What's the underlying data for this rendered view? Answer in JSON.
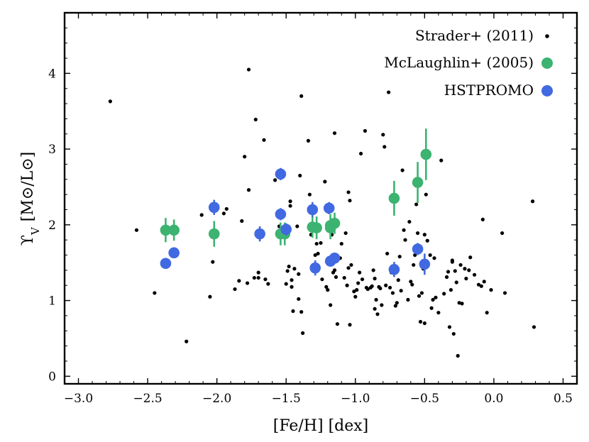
{
  "chart_data": {
    "type": "scatter",
    "title": "",
    "xlabel": "[Fe/H] [dex]",
    "ylabel": "ϒ",
    "ylabel_sub": "V",
    "ylabel_units": "[M⊙/L⊙]",
    "xlim": [
      -3.1,
      0.6
    ],
    "ylim": [
      -0.1,
      4.8
    ],
    "x_ticks": [
      -3.0,
      -2.5,
      -2.0,
      -1.5,
      -1.0,
      -0.5,
      0.0,
      0.5
    ],
    "x_tick_labels": [
      "−3.0",
      "−2.5",
      "−2.0",
      "−1.5",
      "−1.0",
      "−0.5",
      "0.0",
      "0.5"
    ],
    "y_ticks": [
      0,
      1,
      2,
      3,
      4
    ],
    "y_tick_labels": [
      "0",
      "1",
      "2",
      "3",
      "4"
    ],
    "legend_position": "top-right",
    "series": [
      {
        "name": "Strader+ (2011)",
        "color": "#000000",
        "marker": "small-dot",
        "points": [
          [
            -2.77,
            3.63
          ],
          [
            -2.58,
            1.93
          ],
          [
            -2.45,
            1.1
          ],
          [
            -2.22,
            0.46
          ],
          [
            -2.11,
            2.13
          ],
          [
            -2.05,
            1.05
          ],
          [
            -2.03,
            1.51
          ],
          [
            -1.95,
            2.15
          ],
          [
            -1.93,
            2.21
          ],
          [
            -1.87,
            1.15
          ],
          [
            -1.84,
            1.26
          ],
          [
            -1.82,
            2.05
          ],
          [
            -1.8,
            2.9
          ],
          [
            -1.78,
            1.23
          ],
          [
            -1.77,
            4.05
          ],
          [
            -1.77,
            2.46
          ],
          [
            -1.73,
            1.3
          ],
          [
            -1.72,
            3.39
          ],
          [
            -1.7,
            1.3
          ],
          [
            -1.7,
            1.37
          ],
          [
            -1.66,
            3.12
          ],
          [
            -1.65,
            1.28
          ],
          [
            -1.63,
            1.22
          ],
          [
            -1.58,
            2.59
          ],
          [
            -1.55,
            1.98
          ],
          [
            -1.53,
            1.95
          ],
          [
            -1.5,
            1.22
          ],
          [
            -1.49,
            1.39
          ],
          [
            -1.48,
            1.45
          ],
          [
            -1.47,
            2.25
          ],
          [
            -1.47,
            2.31
          ],
          [
            -1.46,
            1.27
          ],
          [
            -1.46,
            1.18
          ],
          [
            -1.45,
            0.86
          ],
          [
            -1.44,
            1.42
          ],
          [
            -1.42,
            1.98
          ],
          [
            -1.41,
            1.35
          ],
          [
            -1.41,
            1.02
          ],
          [
            -1.4,
            2.65
          ],
          [
            -1.39,
            0.85
          ],
          [
            -1.39,
            3.7
          ],
          [
            -1.38,
            0.57
          ],
          [
            -1.34,
            3.11
          ],
          [
            -1.33,
            2.4
          ],
          [
            -1.32,
            1.87
          ],
          [
            -1.3,
            1.45
          ],
          [
            -1.29,
            1.6
          ],
          [
            -1.28,
            1.75
          ],
          [
            -1.27,
            1.62
          ],
          [
            -1.25,
            1.76
          ],
          [
            -1.24,
            1.28
          ],
          [
            -1.22,
            2.57
          ],
          [
            -1.21,
            1.18
          ],
          [
            -1.2,
            1.14
          ],
          [
            -1.19,
            1.51
          ],
          [
            -1.18,
            0.94
          ],
          [
            -1.17,
            1.87
          ],
          [
            -1.16,
            1.53
          ],
          [
            -1.16,
            1.37
          ],
          [
            -1.15,
            1.4
          ],
          [
            -1.15,
            3.21
          ],
          [
            -1.14,
            1.31
          ],
          [
            -1.13,
            0.69
          ],
          [
            -1.11,
            1.56
          ],
          [
            -1.1,
            1.75
          ],
          [
            -1.08,
            1.3
          ],
          [
            -1.07,
            1.89
          ],
          [
            -1.06,
            1.2
          ],
          [
            -1.05,
            1.43
          ],
          [
            -1.05,
            2.43
          ],
          [
            -1.04,
            2.32
          ],
          [
            -1.04,
            0.68
          ],
          [
            -1.03,
            1.47
          ],
          [
            -1.01,
            1.12
          ],
          [
            -1.0,
            1.05
          ],
          [
            -0.99,
            1.14
          ],
          [
            -0.98,
            1.23
          ],
          [
            -0.97,
            1.37
          ],
          [
            -0.96,
            2.94
          ],
          [
            -0.95,
            1.28
          ],
          [
            -0.93,
            3.24
          ],
          [
            -0.92,
            1.17
          ],
          [
            -0.91,
            1.15
          ],
          [
            -0.89,
            1.17
          ],
          [
            -0.88,
            1.19
          ],
          [
            -0.87,
            1.4
          ],
          [
            -0.86,
            1.29
          ],
          [
            -0.86,
            0.89
          ],
          [
            -0.85,
            1.01
          ],
          [
            -0.84,
            0.82
          ],
          [
            -0.83,
            1.18
          ],
          [
            -0.82,
            1.16
          ],
          [
            -0.81,
            0.94
          ],
          [
            -0.8,
            3.19
          ],
          [
            -0.79,
            3.03
          ],
          [
            -0.78,
            1.2
          ],
          [
            -0.77,
            1.62
          ],
          [
            -0.76,
            3.75
          ],
          [
            -0.75,
            1.17
          ],
          [
            -0.74,
            1.37
          ],
          [
            -0.73,
            1.1
          ],
          [
            -0.72,
            1.4
          ],
          [
            -0.71,
            0.93
          ],
          [
            -0.7,
            0.97
          ],
          [
            -0.69,
            1.27
          ],
          [
            -0.68,
            1.58
          ],
          [
            -0.67,
            1.13
          ],
          [
            -0.66,
            2.72
          ],
          [
            -0.65,
            1.93
          ],
          [
            -0.64,
            1.8
          ],
          [
            -0.62,
            1.01
          ],
          [
            -0.61,
            2.04
          ],
          [
            -0.6,
            1.25
          ],
          [
            -0.59,
            1.21
          ],
          [
            -0.58,
            1.47
          ],
          [
            -0.57,
            1.6
          ],
          [
            -0.56,
            2.27
          ],
          [
            -0.55,
            1.89
          ],
          [
            -0.54,
            1.06
          ],
          [
            -0.53,
            0.72
          ],
          [
            -0.52,
            1.1
          ],
          [
            -0.51,
            1.42
          ],
          [
            -0.5,
            1.87
          ],
          [
            -0.5,
            0.7
          ],
          [
            -0.49,
            2.4
          ],
          [
            -0.48,
            1.79
          ],
          [
            -0.46,
            1.6
          ],
          [
            -0.45,
            0.9
          ],
          [
            -0.44,
            1.01
          ],
          [
            -0.43,
            1.56
          ],
          [
            -0.42,
            1.04
          ],
          [
            -0.4,
            0.84
          ],
          [
            -0.38,
            2.85
          ],
          [
            -0.36,
            1.09
          ],
          [
            -0.34,
            1.31
          ],
          [
            -0.33,
            1.38
          ],
          [
            -0.32,
            0.65
          ],
          [
            -0.31,
            1.14
          ],
          [
            -0.3,
            1.51
          ],
          [
            -0.3,
            1.53
          ],
          [
            -0.29,
            0.56
          ],
          [
            -0.28,
            1.39
          ],
          [
            -0.27,
            1.24
          ],
          [
            -0.26,
            0.27
          ],
          [
            -0.25,
            0.97
          ],
          [
            -0.24,
            1.47
          ],
          [
            -0.23,
            0.96
          ],
          [
            -0.21,
            1.42
          ],
          [
            -0.2,
            1.29
          ],
          [
            -0.18,
            1.4
          ],
          [
            -0.17,
            1.57
          ],
          [
            -0.14,
            1.34
          ],
          [
            -0.11,
            1.21
          ],
          [
            -0.09,
            1.19
          ],
          [
            -0.08,
            2.07
          ],
          [
            -0.07,
            1.25
          ],
          [
            -0.05,
            0.84
          ],
          [
            -0.02,
            1.14
          ],
          [
            0.06,
            1.89
          ],
          [
            0.08,
            1.1
          ],
          [
            0.28,
            2.31
          ],
          [
            0.29,
            0.65
          ]
        ]
      },
      {
        "name": "McLaughlin+ (2005)",
        "color": "#3cb371",
        "marker": "circle",
        "points": [
          [
            -2.37,
            1.93,
            0.16
          ],
          [
            -2.31,
            1.93,
            0.14
          ],
          [
            -2.02,
            1.88,
            0.17
          ],
          [
            -1.54,
            1.88,
            0.15
          ],
          [
            -1.51,
            1.88,
            0.15
          ],
          [
            -1.31,
            1.97,
            0.14
          ],
          [
            -1.28,
            1.96,
            0.15
          ],
          [
            -1.18,
            1.96,
            0.15
          ],
          [
            -1.18,
            1.99,
            0.15
          ],
          [
            -1.15,
            2.02,
            0.14
          ],
          [
            -0.72,
            2.35,
            0.23
          ],
          [
            -0.55,
            2.56,
            0.27
          ],
          [
            -0.49,
            2.93,
            0.34
          ]
        ]
      },
      {
        "name": "HSTPROMO",
        "color": "#4169e1",
        "marker": "circle",
        "points": [
          [
            -2.37,
            1.49,
            0.05
          ],
          [
            -2.31,
            1.63,
            0.05
          ],
          [
            -2.02,
            2.23,
            0.1
          ],
          [
            -1.69,
            1.88,
            0.1
          ],
          [
            -1.54,
            2.67,
            0.08
          ],
          [
            -1.54,
            2.14,
            0.08
          ],
          [
            -1.5,
            1.94,
            0.08
          ],
          [
            -1.31,
            2.2,
            0.1
          ],
          [
            -1.29,
            1.43,
            0.1
          ],
          [
            -1.19,
            2.22,
            0.08
          ],
          [
            -1.18,
            1.52,
            0.05
          ],
          [
            -1.15,
            1.56,
            0.05
          ],
          [
            -0.72,
            1.41,
            0.1
          ],
          [
            -0.55,
            1.68,
            0.08
          ],
          [
            -0.5,
            1.48,
            0.14
          ]
        ]
      }
    ]
  }
}
